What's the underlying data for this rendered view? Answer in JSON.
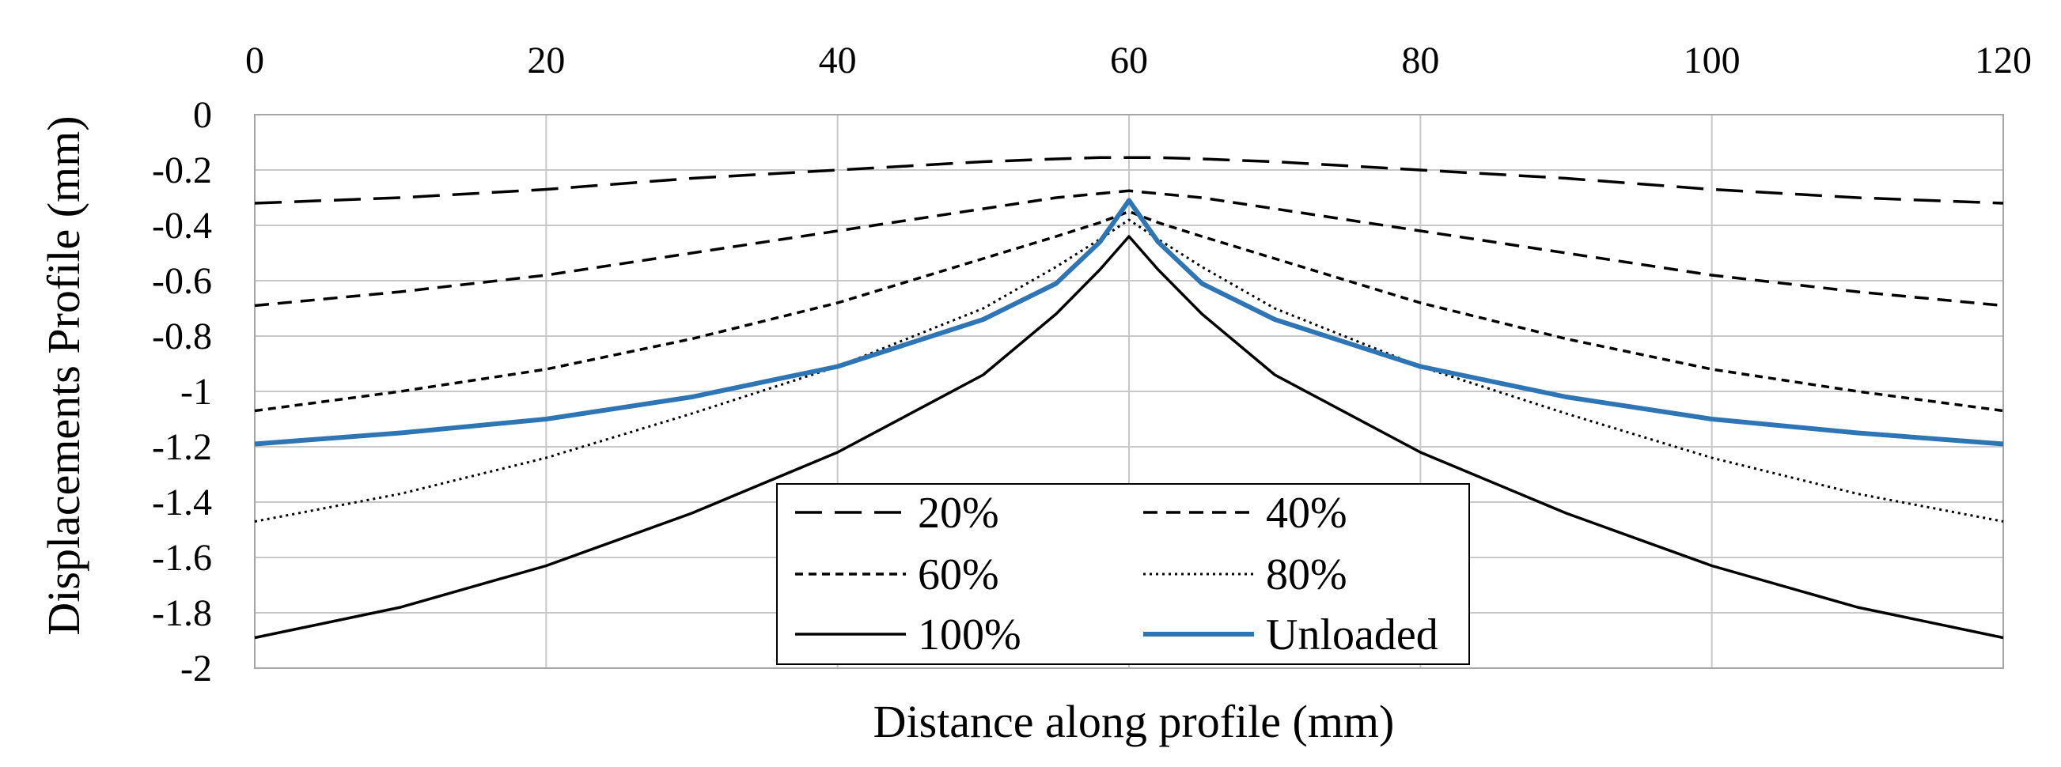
{
  "chart_data": {
    "type": "line",
    "title": "",
    "xlabel": "Distance along profile (mm)",
    "ylabel": "Displacements Profile   (mm)",
    "xlim": [
      0,
      120
    ],
    "ylim": [
      -2,
      0
    ],
    "x_ticks": [
      0,
      20,
      40,
      60,
      80,
      100,
      120
    ],
    "y_ticks": [
      0,
      -0.2,
      -0.4,
      -0.6,
      -0.8,
      -1,
      -1.2,
      -1.4,
      -1.6,
      -1.8,
      -2
    ],
    "x_tick_labels": [
      "0",
      "20",
      "40",
      "60",
      "80",
      "100",
      "120"
    ],
    "y_tick_labels": [
      "0",
      "-0.2",
      "-0.4",
      "-0.6",
      "-0.8",
      "-1",
      "-1.2",
      "-1.4",
      "-1.6",
      "-1.8",
      "-2"
    ],
    "x_axis_position": "top",
    "grid": true,
    "legend_position": "bottom-center",
    "x": [
      0,
      10,
      20,
      30,
      40,
      50,
      55,
      58,
      60,
      62,
      65,
      70,
      80,
      90,
      100,
      110,
      120
    ],
    "series": [
      {
        "name": "20%",
        "style": "long-dash",
        "color": "#000000",
        "values": [
          -0.32,
          -0.3,
          -0.27,
          -0.23,
          -0.2,
          -0.17,
          -0.16,
          -0.155,
          -0.155,
          -0.155,
          -0.16,
          -0.17,
          -0.2,
          -0.23,
          -0.27,
          -0.3,
          -0.32
        ]
      },
      {
        "name": "40%",
        "style": "dash",
        "color": "#000000",
        "values": [
          -0.69,
          -0.64,
          -0.58,
          -0.5,
          -0.42,
          -0.34,
          -0.3,
          -0.285,
          -0.275,
          -0.285,
          -0.3,
          -0.34,
          -0.42,
          -0.5,
          -0.58,
          -0.64,
          -0.69
        ]
      },
      {
        "name": "60%",
        "style": "short-dash",
        "color": "#000000",
        "values": [
          -1.07,
          -1.0,
          -0.92,
          -0.81,
          -0.68,
          -0.52,
          -0.44,
          -0.39,
          -0.35,
          -0.39,
          -0.44,
          -0.52,
          -0.68,
          -0.81,
          -0.92,
          -1.0,
          -1.07
        ]
      },
      {
        "name": "80%",
        "style": "dotted",
        "color": "#000000",
        "values": [
          -1.47,
          -1.37,
          -1.24,
          -1.08,
          -0.91,
          -0.7,
          -0.55,
          -0.45,
          -0.38,
          -0.45,
          -0.55,
          -0.7,
          -0.91,
          -1.08,
          -1.24,
          -1.37,
          -1.47
        ]
      },
      {
        "name": "100%",
        "style": "solid",
        "color": "#000000",
        "values": [
          -1.89,
          -1.78,
          -1.63,
          -1.44,
          -1.22,
          -0.94,
          -0.72,
          -0.56,
          -0.44,
          -0.56,
          -0.72,
          -0.94,
          -1.22,
          -1.44,
          -1.63,
          -1.78,
          -1.89
        ]
      },
      {
        "name": "Unloaded",
        "style": "solid",
        "color": "#2e75b6",
        "values": [
          -1.19,
          -1.15,
          -1.1,
          -1.02,
          -0.91,
          -0.74,
          -0.61,
          -0.46,
          -0.31,
          -0.46,
          -0.61,
          -0.74,
          -0.91,
          -1.02,
          -1.1,
          -1.15,
          -1.19
        ]
      }
    ]
  }
}
